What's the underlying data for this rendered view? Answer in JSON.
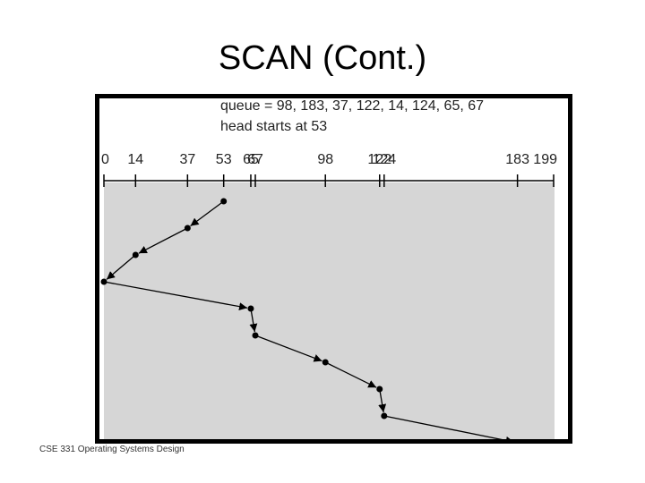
{
  "slide": {
    "title": "SCAN (Cont.)",
    "footer": "CSE 331 Operating Systems Design"
  },
  "figure": {
    "queue_text": "queue = 98, 183, 37, 122, 14, 124, 65, 67",
    "head_text": "head starts at 53",
    "axis_min": 0,
    "axis_max": 199,
    "ticks": [
      0,
      14,
      37,
      53,
      65,
      67,
      98,
      122,
      124,
      183,
      199
    ],
    "tick_labels": [
      "0",
      "14",
      "37",
      "53",
      "65",
      "67",
      "98",
      "122",
      "124",
      "183",
      "199"
    ],
    "path": [
      53,
      37,
      14,
      0,
      65,
      67,
      98,
      122,
      124,
      183
    ],
    "colors": {
      "frame": "#000000",
      "plot_bg": "#d6d6d6",
      "line": "#000000"
    }
  }
}
